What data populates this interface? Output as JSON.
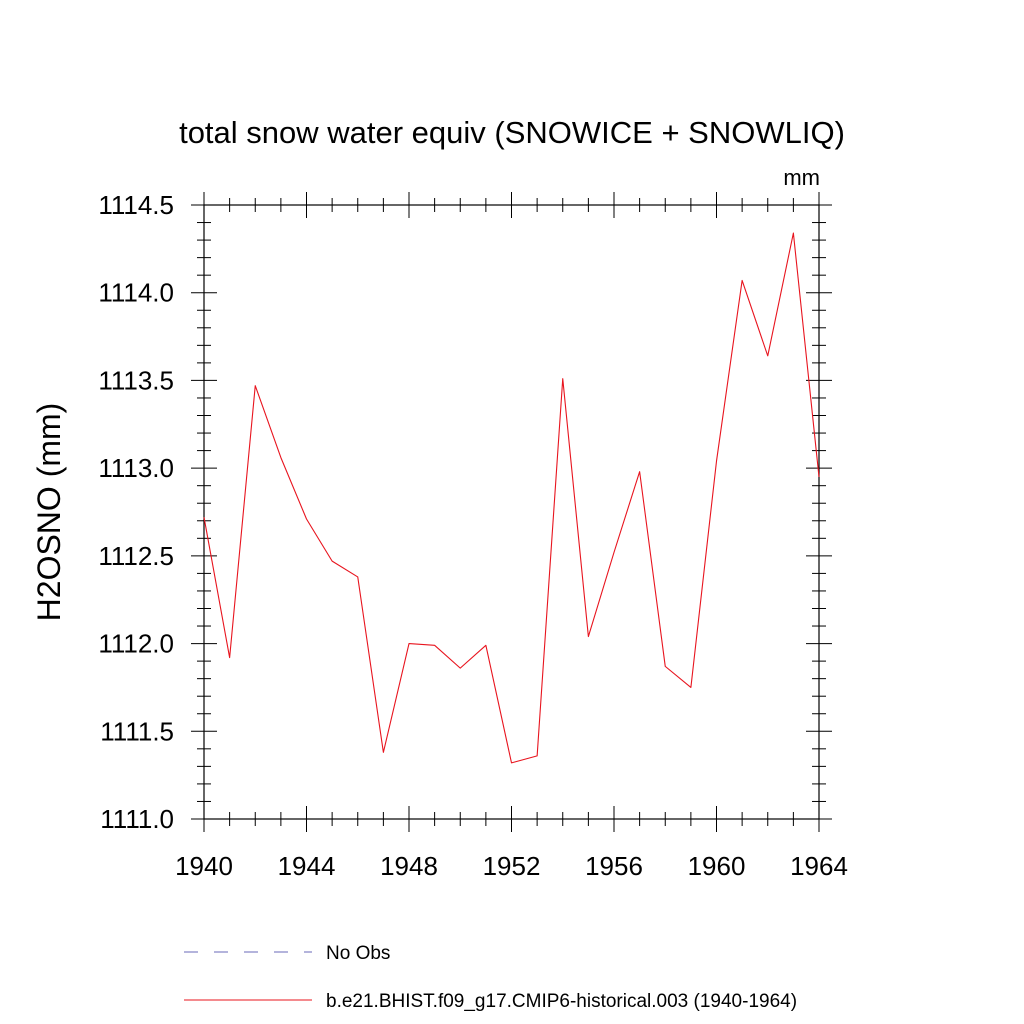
{
  "chart_data": {
    "type": "line",
    "title": "total snow water equiv (SNOWICE + SNOWLIQ)",
    "units": "mm",
    "ylabel": "H2OSNO  (mm)",
    "xlabel": "",
    "xlim": [
      1940,
      1964
    ],
    "ylim": [
      1111.0,
      1114.5
    ],
    "x_ticks": [
      1940,
      1944,
      1948,
      1952,
      1956,
      1960,
      1964
    ],
    "x_tick_labels": [
      "1940",
      "1944",
      "1948",
      "1952",
      "1956",
      "1960",
      "1964"
    ],
    "y_ticks": [
      1111.0,
      1111.5,
      1112.0,
      1112.5,
      1113.0,
      1113.5,
      1114.0,
      1114.5
    ],
    "y_tick_labels": [
      "1111.0",
      "1111.5",
      "1112.0",
      "1112.5",
      "1113.0",
      "1113.5",
      "1114.0",
      "1114.5"
    ],
    "grid": false,
    "legend_position": "bottom",
    "x": [
      1940,
      1941,
      1942,
      1943,
      1944,
      1945,
      1946,
      1947,
      1948,
      1949,
      1950,
      1951,
      1952,
      1953,
      1954,
      1955,
      1956,
      1957,
      1958,
      1959,
      1960,
      1961,
      1962,
      1963,
      1964
    ],
    "series": [
      {
        "name": "b.e21.BHIST.f09_g17.CMIP6-historical.003 (1940-1964)",
        "color": "#e8141e",
        "style": "solid",
        "values": [
          1112.72,
          1111.92,
          1113.47,
          1113.06,
          1112.71,
          1112.47,
          1112.38,
          1111.38,
          1112.0,
          1111.99,
          1111.86,
          1111.99,
          1111.32,
          1111.36,
          1113.51,
          1112.04,
          1112.52,
          1112.98,
          1111.87,
          1111.75,
          1113.04,
          1114.07,
          1113.64,
          1114.34,
          1112.95
        ]
      }
    ],
    "legend": [
      {
        "label": "No Obs",
        "color": "#6a6ab8",
        "style": "dashed"
      },
      {
        "label": "b.e21.BHIST.f09_g17.CMIP6-historical.003 (1940-1964)",
        "color": "#e8141e",
        "style": "solid"
      }
    ]
  }
}
